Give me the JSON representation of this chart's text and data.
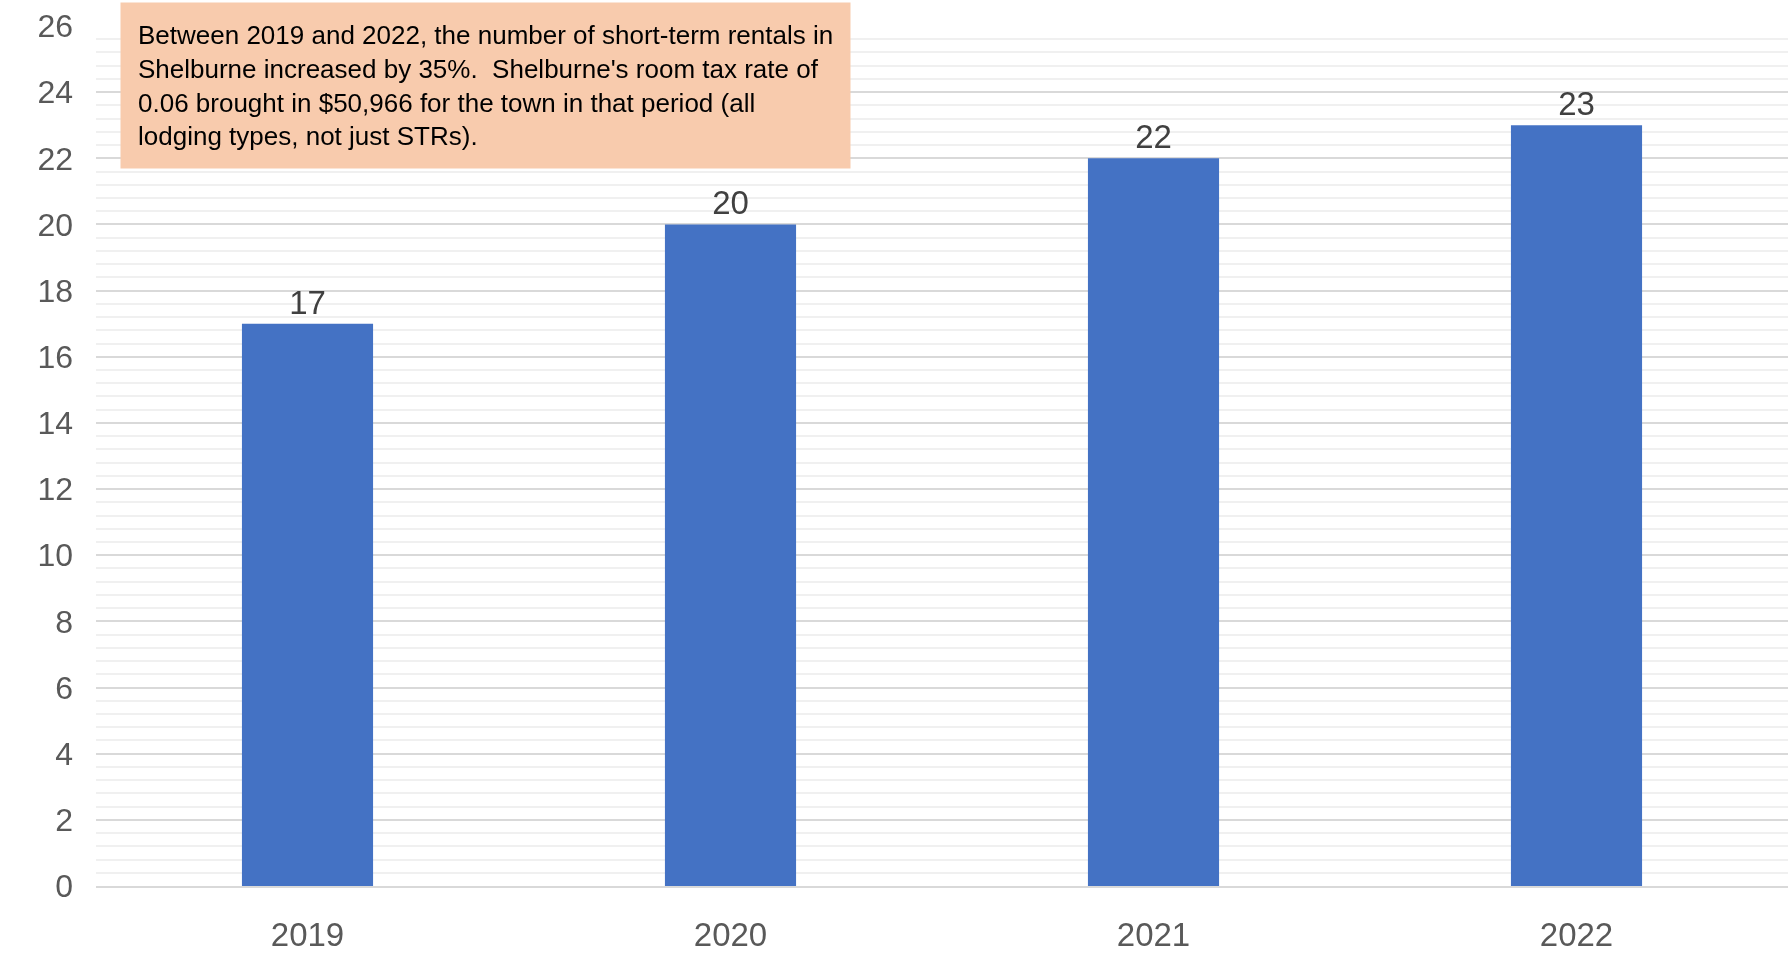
{
  "chart_data": {
    "type": "bar",
    "categories": [
      "2019",
      "2020",
      "2021",
      "2022"
    ],
    "values": [
      17,
      20,
      22,
      23
    ],
    "color": "#4472c4",
    "ylim": [
      0,
      26
    ],
    "yticks": [
      0,
      2,
      4,
      6,
      8,
      10,
      12,
      14,
      16,
      18,
      20,
      22,
      24,
      26
    ],
    "grid": "y",
    "data_labels": true,
    "annotations": [
      "Between 2019 and 2022, the number of short-term rentals in Shelburne increased by 35%.  Shelburne's room tax rate of 0.06 brought in $50,966 for the town in that period (all lodging types, not just STRs)."
    ]
  }
}
